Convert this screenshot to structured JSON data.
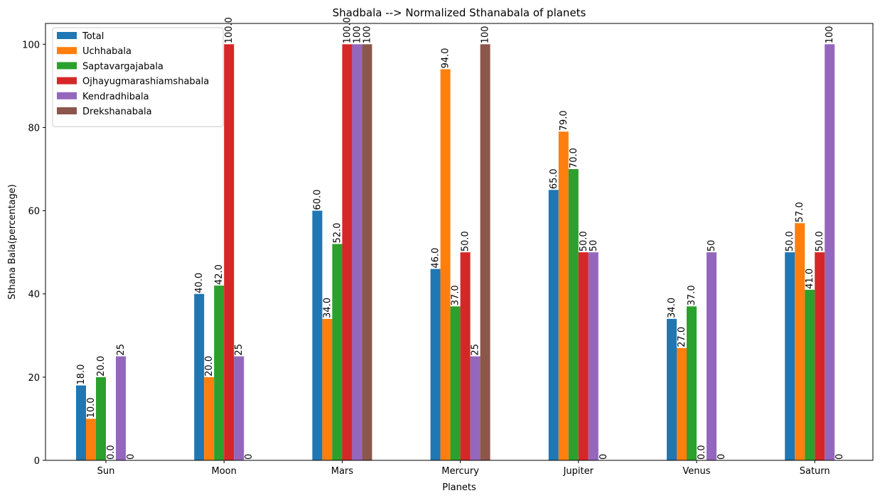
{
  "chart_data": {
    "type": "bar",
    "title": "Shadbala --> Normalized Sthanabala of planets",
    "xlabel": "Planets",
    "ylabel": "Sthana Bala(percentage)",
    "categories": [
      "Sun",
      "Moon",
      "Mars",
      "Mercury",
      "Jupiter",
      "Venus",
      "Saturn"
    ],
    "ylim": [
      0,
      105
    ],
    "yticks": [
      0,
      20,
      40,
      60,
      80,
      100
    ],
    "grid": false,
    "legend_position": "top-left",
    "series": [
      {
        "name": "Total",
        "color": "#1f77b4",
        "values": [
          18,
          40,
          60,
          46,
          65,
          34,
          50
        ],
        "labels": [
          "18.0",
          "40.0",
          "60.0",
          "46.0",
          "65.0",
          "34.0",
          "50.0"
        ]
      },
      {
        "name": "Uchhabala",
        "color": "#ff7f0e",
        "values": [
          10,
          20,
          34,
          94,
          79,
          27,
          57
        ],
        "labels": [
          "10.0",
          "20.0",
          "34.0",
          "94.0",
          "79.0",
          "27.0",
          "57.0"
        ]
      },
      {
        "name": "Saptavargajabala",
        "color": "#2ca02c",
        "values": [
          20,
          42,
          52,
          37,
          70,
          37,
          41
        ],
        "labels": [
          "20.0",
          "42.0",
          "52.0",
          "37.0",
          "70.0",
          "37.0",
          "41.0"
        ]
      },
      {
        "name": "Ojhayugmarashiamshabala",
        "color": "#d62728",
        "values": [
          0,
          100,
          100,
          50,
          50,
          0,
          50
        ],
        "labels": [
          "0.0",
          "100.0",
          "100.0",
          "50.0",
          "50.0",
          "0.0",
          "50.0"
        ]
      },
      {
        "name": "Kendradhibala",
        "color": "#9467bd",
        "values": [
          25,
          25,
          100,
          25,
          50,
          50,
          100
        ],
        "labels": [
          "25",
          "25",
          "100",
          "25",
          "50",
          "50",
          "100"
        ]
      },
      {
        "name": "Drekshanabala",
        "color": "#8c564b",
        "values": [
          0,
          0,
          100,
          100,
          0,
          0,
          0
        ],
        "labels": [
          "0",
          "0",
          "100",
          "100",
          "0",
          "0",
          "0"
        ]
      }
    ]
  }
}
